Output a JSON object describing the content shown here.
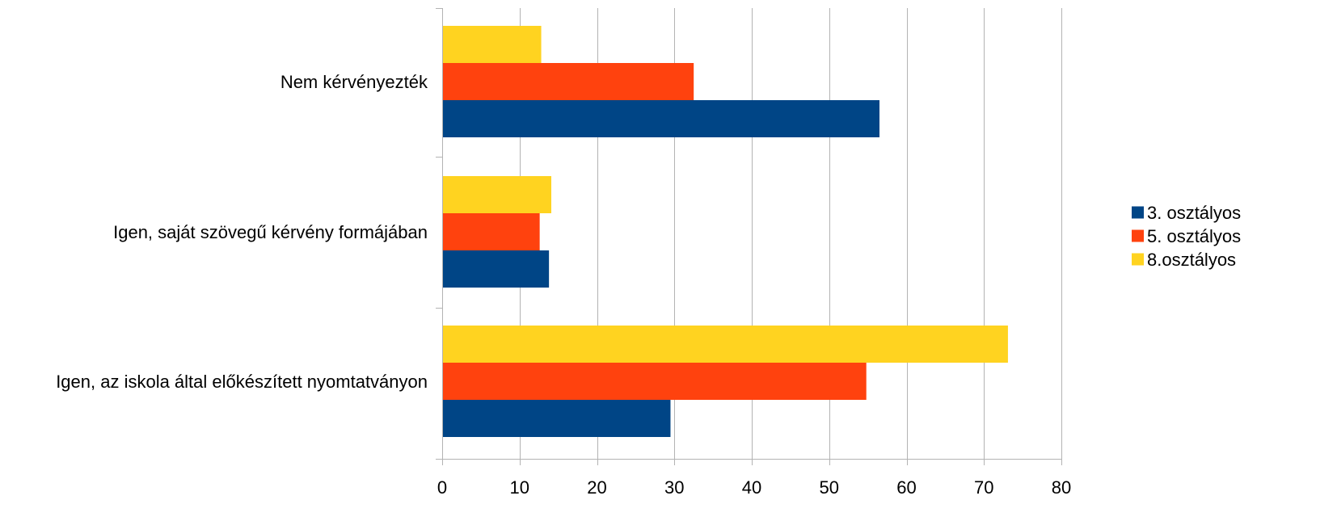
{
  "chart_data": {
    "type": "bar",
    "orientation": "horizontal",
    "categories": [
      "Nem kérvényezték",
      "Igen, saját szövegű kérvény formájában",
      "Igen, az iskola által előkészített nyomtatványon"
    ],
    "series": [
      {
        "name": "3. osztályos",
        "color": "#004586",
        "values": [
          56.5,
          13.8,
          29.5
        ]
      },
      {
        "name": "5. osztályos",
        "color": "#ff420e",
        "values": [
          32.5,
          12.6,
          54.8
        ]
      },
      {
        "name": "8.osztályos",
        "color": "#ffd320",
        "values": [
          12.8,
          14.1,
          73.1
        ]
      }
    ],
    "xlim": [
      0,
      80
    ],
    "x_ticks": [
      0,
      10,
      20,
      30,
      40,
      50,
      60,
      70,
      80
    ],
    "title": "",
    "xlabel": "",
    "ylabel": "",
    "grid": true,
    "legend_position": "right"
  }
}
